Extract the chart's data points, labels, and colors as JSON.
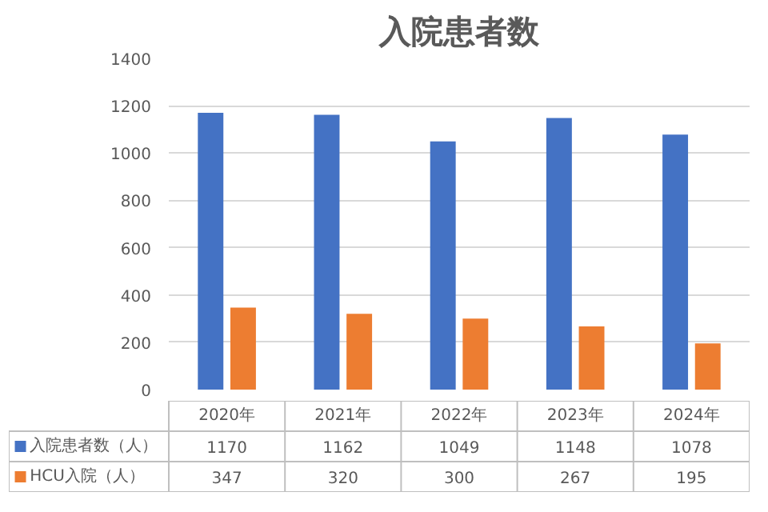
{
  "chart_data": {
    "type": "bar",
    "title": "入院患者数",
    "categories": [
      "2020年",
      "2021年",
      "2022年",
      "2023年",
      "2024年"
    ],
    "series": [
      {
        "name": "入院患者数（人）",
        "color": "#4472c4",
        "values": [
          1170,
          1162,
          1049,
          1148,
          1078
        ]
      },
      {
        "name": "HCU入院（人）",
        "color": "#ed7d31",
        "values": [
          347,
          320,
          300,
          267,
          195
        ]
      }
    ],
    "ylim": [
      0,
      1400
    ],
    "yticks": [
      0,
      200,
      400,
      600,
      800,
      1000,
      1200,
      1400
    ],
    "grid": "y",
    "legend": "bottom",
    "data_labels": true
  }
}
